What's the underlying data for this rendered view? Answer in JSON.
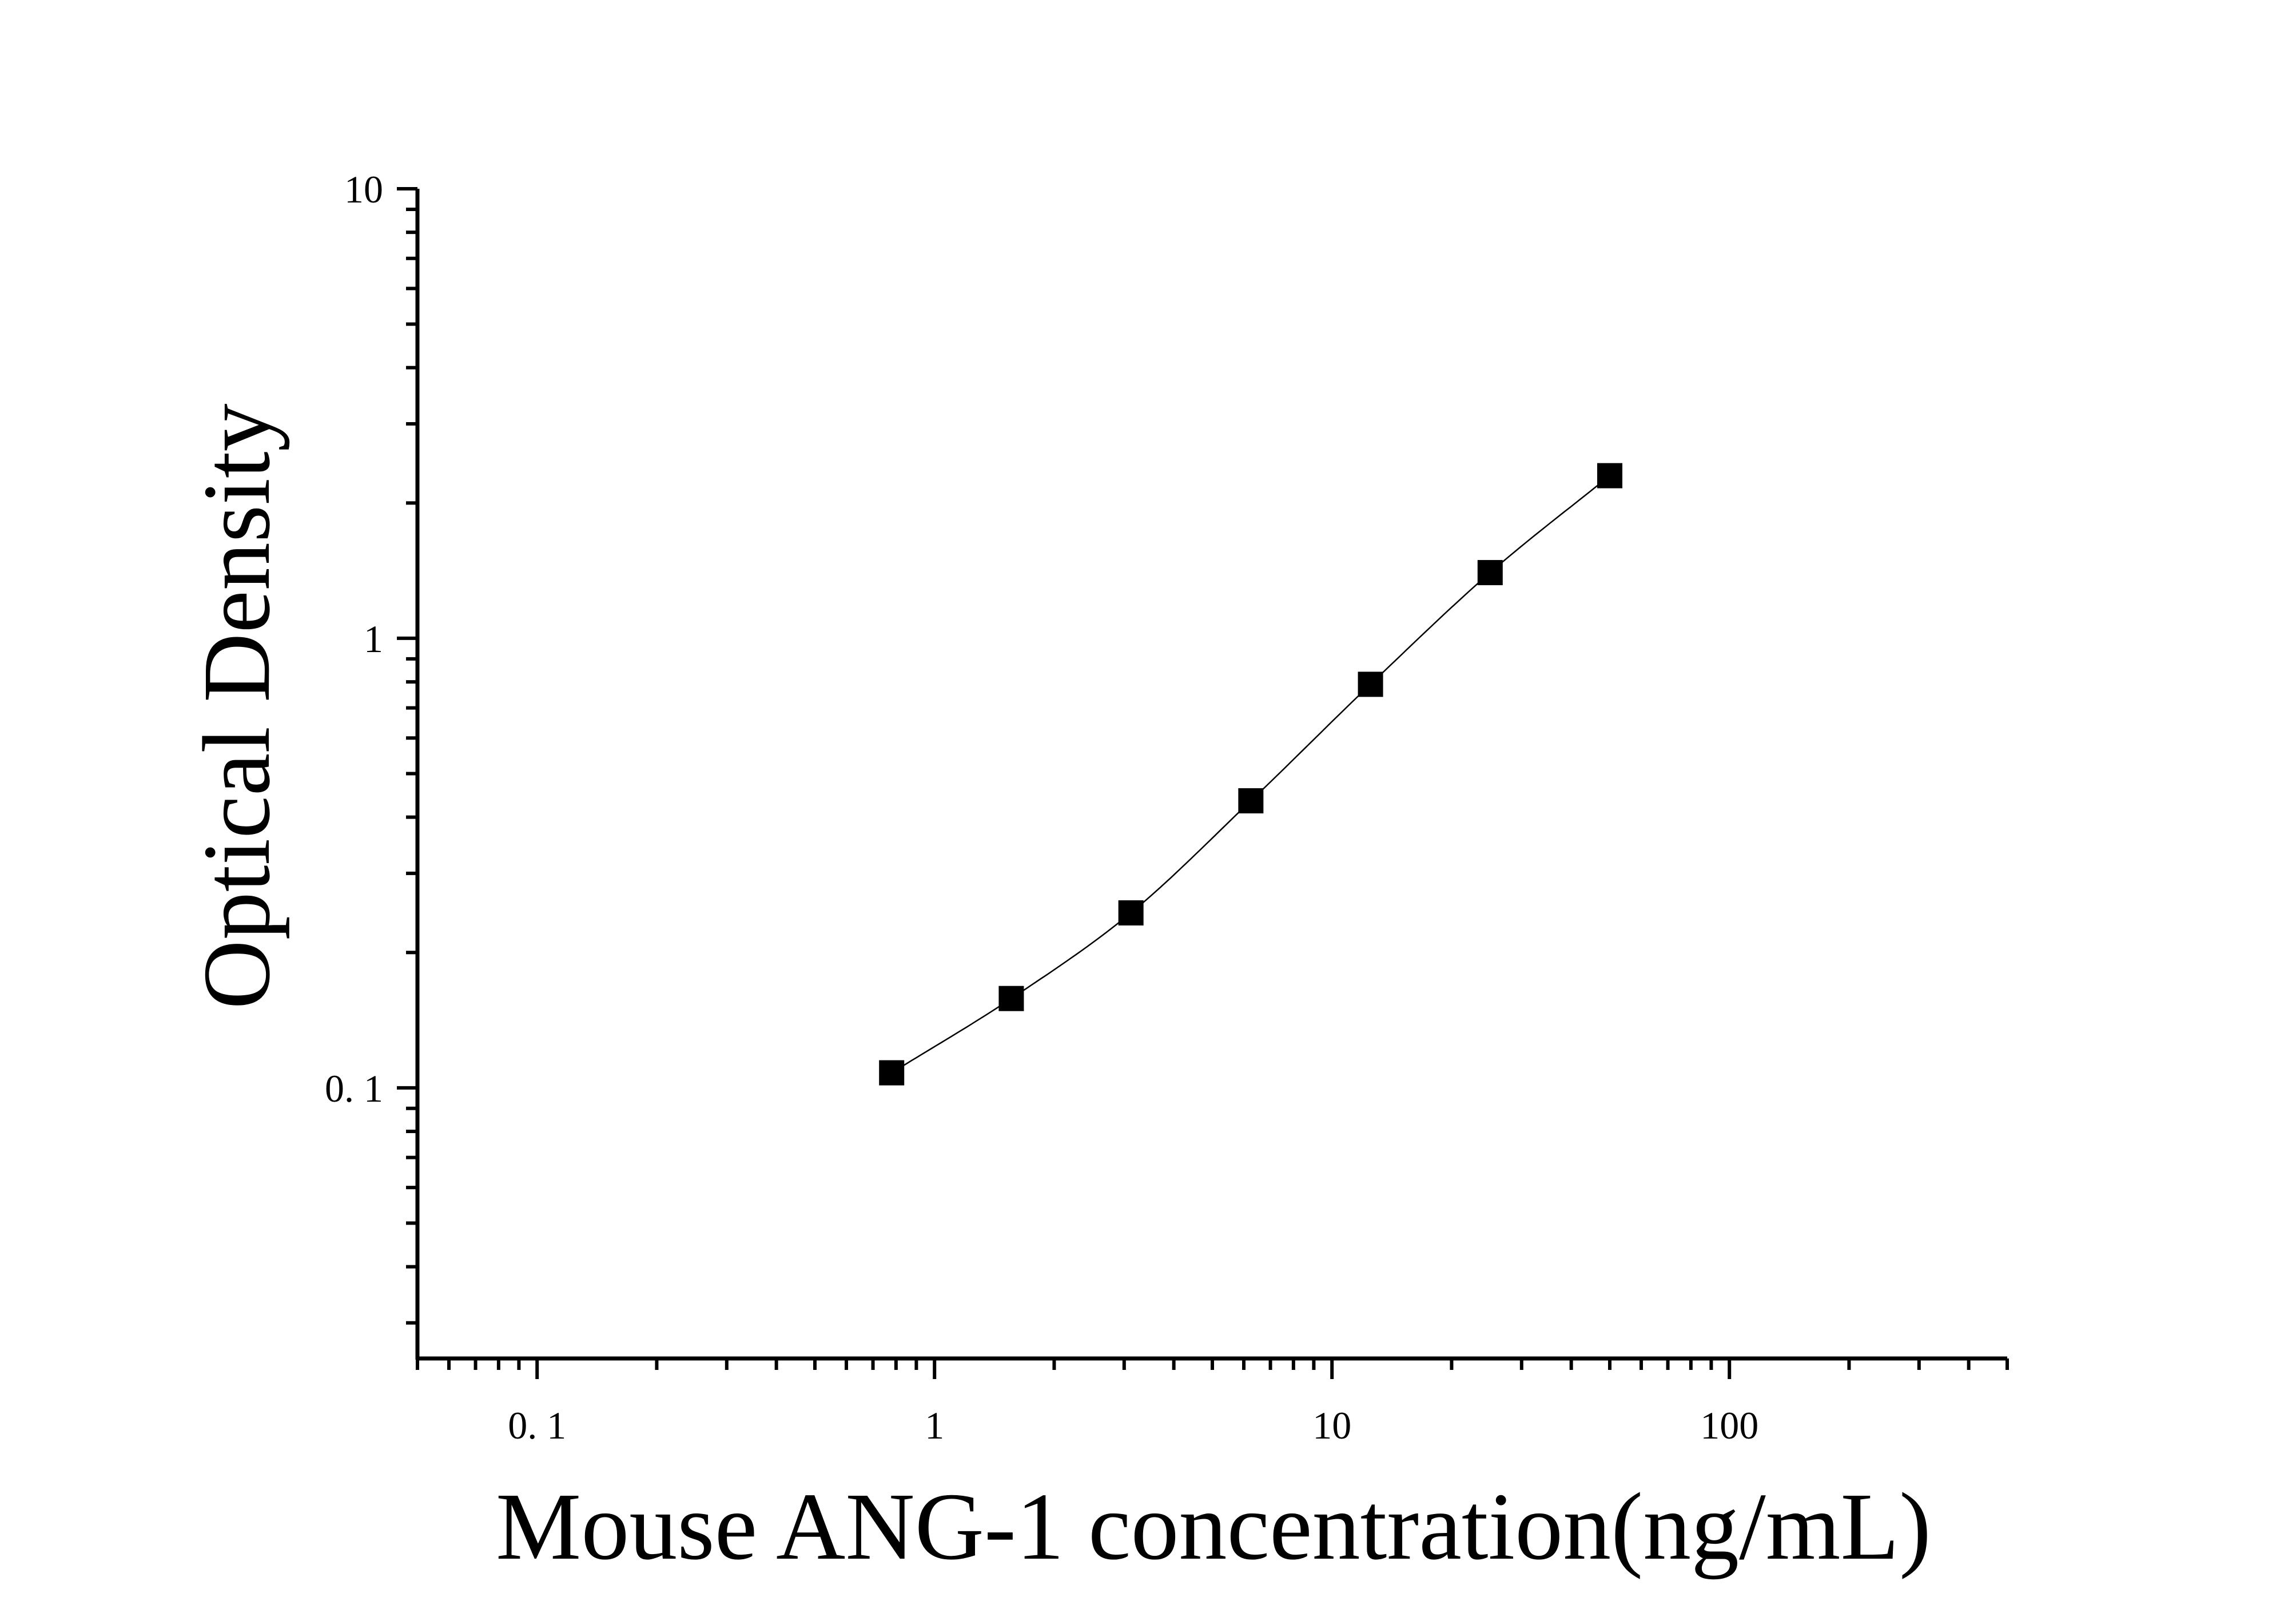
{
  "chart_data": {
    "type": "scatter",
    "xlabel": "Mouse ANG-1 concentration(ng/mL)",
    "ylabel": "Optical Density",
    "x_scale": "log",
    "y_scale": "log",
    "xlim": [
      0.05,
      500
    ],
    "ylim": [
      0.025,
      10
    ],
    "x_ticks": [
      {
        "value": 0.1,
        "label": "0. 1"
      },
      {
        "value": 1,
        "label": "1"
      },
      {
        "value": 10,
        "label": "10"
      },
      {
        "value": 100,
        "label": "100"
      }
    ],
    "y_ticks": [
      {
        "value": 0.1,
        "label": "0. 1"
      },
      {
        "value": 1,
        "label": "1"
      },
      {
        "value": 10,
        "label": "10"
      }
    ],
    "grid": false,
    "series": [
      {
        "x": [
          0.78,
          1.56,
          3.12,
          6.25,
          12.5,
          25,
          50
        ],
        "y": [
          0.108,
          0.158,
          0.245,
          0.435,
          0.79,
          1.4,
          2.3
        ],
        "marker": "square",
        "fit_line": true
      }
    ],
    "colors": {
      "marker": "#000000",
      "line": "#000000",
      "axis": "#000000"
    }
  }
}
